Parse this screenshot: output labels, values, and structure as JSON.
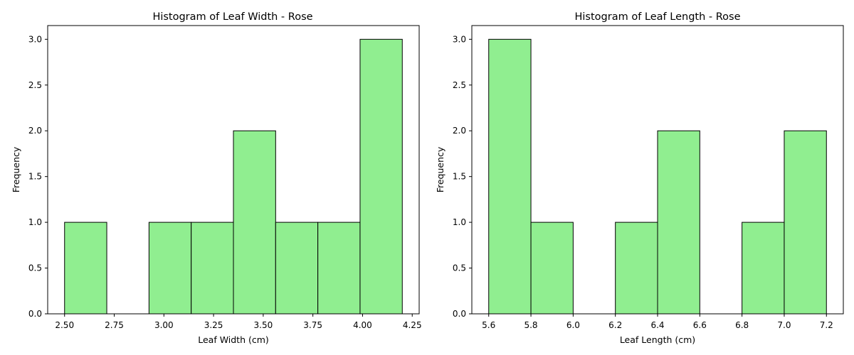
{
  "colors": {
    "bar_fill": "#90EE90",
    "bar_edge": "#000000"
  },
  "chart_data": [
    {
      "type": "bar",
      "title": "Histogram of Leaf Width - Rose",
      "xlabel": "Leaf Width (cm)",
      "ylabel": "Frequency",
      "bin_edges": [
        2.5,
        2.7125,
        2.925,
        3.1375,
        3.35,
        3.5625,
        3.775,
        3.9875,
        4.2
      ],
      "values": [
        1,
        0,
        1,
        1,
        2,
        1,
        1,
        3
      ],
      "xlim": [
        2.415,
        4.285
      ],
      "ylim": [
        0,
        3.15
      ],
      "xticks": [
        2.5,
        2.75,
        3.0,
        3.25,
        3.5,
        3.75,
        4.0,
        4.25
      ],
      "xtick_labels": [
        "2.50",
        "2.75",
        "3.00",
        "3.25",
        "3.50",
        "3.75",
        "4.00",
        "4.25"
      ],
      "yticks": [
        0,
        0.5,
        1.0,
        1.5,
        2.0,
        2.5,
        3.0
      ],
      "ytick_labels": [
        "0.0",
        "0.5",
        "1.0",
        "1.5",
        "2.0",
        "2.5",
        "3.0"
      ],
      "grid": false
    },
    {
      "type": "bar",
      "title": "Histogram of Leaf Length - Rose",
      "xlabel": "Leaf Length (cm)",
      "ylabel": "Frequency",
      "bin_edges": [
        5.6,
        5.8,
        6.0,
        6.2,
        6.4,
        6.6,
        6.8,
        7.0,
        7.2
      ],
      "values": [
        3,
        1,
        0,
        1,
        2,
        0,
        1,
        2
      ],
      "xlim": [
        5.52,
        7.28
      ],
      "ylim": [
        0,
        3.15
      ],
      "xticks": [
        5.6,
        5.8,
        6.0,
        6.2,
        6.4,
        6.6,
        6.8,
        7.0,
        7.2
      ],
      "xtick_labels": [
        "5.6",
        "5.8",
        "6.0",
        "6.2",
        "6.4",
        "6.6",
        "6.8",
        "7.0",
        "7.2"
      ],
      "yticks": [
        0,
        0.5,
        1.0,
        1.5,
        2.0,
        2.5,
        3.0
      ],
      "ytick_labels": [
        "0.0",
        "0.5",
        "1.0",
        "1.5",
        "2.0",
        "2.5",
        "3.0"
      ],
      "grid": false
    }
  ]
}
